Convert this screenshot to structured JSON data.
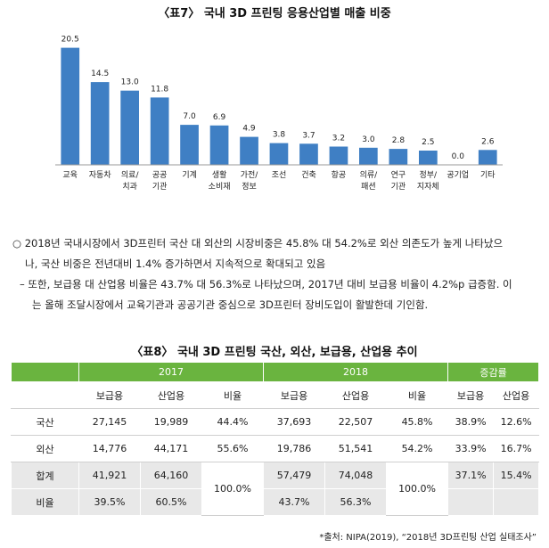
{
  "chart_title": "〈표7〉 국내 3D 프린팅 응용산업별 매출 비중",
  "chart_data": {
    "type": "bar",
    "title": "〈표7〉 국내 3D 프린팅 응용산업별 매출 비중",
    "categories": [
      "교육",
      "자동차",
      "의료/ 치과",
      "공공 기관",
      "기계",
      "생활 소비재",
      "가전/ 정보",
      "조선",
      "건축",
      "항공",
      "의류/ 패션",
      "연구 기관",
      "정부/ 지자체",
      "공기업",
      "기타"
    ],
    "category_lines": [
      [
        "교육"
      ],
      [
        "자동차"
      ],
      [
        "의료/",
        "치과"
      ],
      [
        "공공",
        "기관"
      ],
      [
        "기계"
      ],
      [
        "생활",
        "소비재"
      ],
      [
        "가전/",
        "정보"
      ],
      [
        "조선"
      ],
      [
        "건축"
      ],
      [
        "항공"
      ],
      [
        "의류/",
        "패션"
      ],
      [
        "연구",
        "기관"
      ],
      [
        "정부/",
        "지자체"
      ],
      [
        "공기업"
      ],
      [
        "기타"
      ]
    ],
    "values": [
      20.5,
      14.5,
      13.0,
      11.8,
      7.0,
      6.9,
      4.9,
      3.8,
      3.7,
      3.2,
      3.0,
      2.8,
      2.5,
      0.0,
      2.6
    ],
    "value_labels": [
      "20.5",
      "14.5",
      "13.0",
      "11.8",
      "7.0",
      "6.9",
      "4.9",
      "3.8",
      "3.7",
      "3.2",
      "3.0",
      "2.8",
      "2.5",
      "0.0",
      "2.6"
    ],
    "ylim": [
      0,
      22
    ],
    "bar_color": "#3f7fc4",
    "grid": false
  },
  "paragraphs": [
    {
      "bullet": "○",
      "lines": [
        "2018년 국내시장에서 3D프린터 국산 대 외산의 시장비중은 45.8% 대 54.2%로 외산 의존도가 높게 나타났으",
        "나, 국산 비중은 전년대비 1.4% 증가하면서 지속적으로 확대되고 있음"
      ]
    },
    {
      "bullet": "–",
      "lines": [
        "또한, 보급용 대 산업용 비율은 43.7% 대 56.3%로 나타났으며, 2017년 대비 보급용 비율이 4.2%p 급증함. 이",
        "는 올해 조달시장에서 교육기관과 공공기관 중심으로 3D프린터 장비도입이 활발한데 기인함."
      ]
    }
  ],
  "table_title": "〈표8〉 국내 3D 프린팅 국산, 외산, 보급용, 산업용 추이",
  "table": {
    "groups": [
      "2017",
      "2018",
      "증감률"
    ],
    "sub_headers": [
      "보급용",
      "산업용",
      "비율",
      "보급용",
      "산업용",
      "비율",
      "보급용",
      "산업용"
    ],
    "rows": [
      {
        "label": "국산",
        "cells": [
          "27,145",
          "19,989",
          "44.4%",
          "37,693",
          "22,507",
          "45.8%",
          "38.9%",
          "12.6%"
        ]
      },
      {
        "label": "외산",
        "cells": [
          "14,776",
          "44,171",
          "55.6%",
          "19,786",
          "51,541",
          "54.2%",
          "33.9%",
          "16.7%"
        ]
      }
    ],
    "total_row": {
      "label": "합계",
      "cells": [
        "41,921",
        "64,160",
        "57,479",
        "74,048",
        "37.1%",
        "15.4%"
      ]
    },
    "merged_ratio": [
      "100.0%",
      "100.0%"
    ],
    "ratio_row": {
      "label": "비율",
      "cells": [
        "39.5%",
        "60.5%",
        "43.7%",
        "56.3%"
      ]
    }
  },
  "source": "*출처: NIPA(2019), “2018년 3D프린팅 산업 실태조사”",
  "colors": {
    "header_green": "#6ab43f",
    "row_gray": "#e8e8e8",
    "bar_blue": "#3f7fc4"
  }
}
